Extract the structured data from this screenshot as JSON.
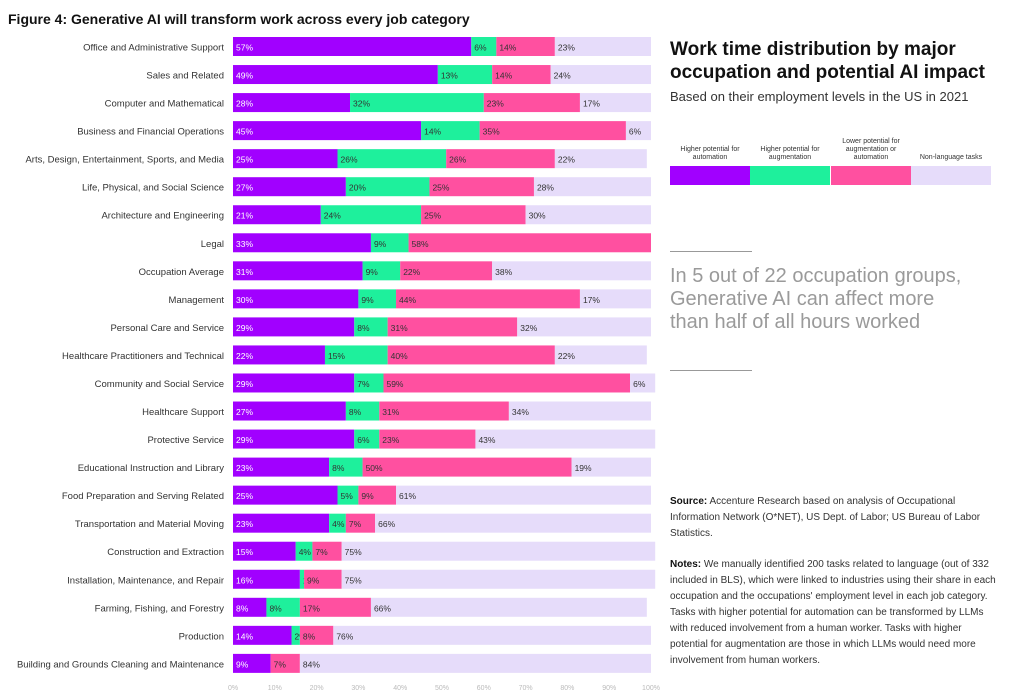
{
  "figure_title": "Figure 4: Generative AI will transform work across every job category",
  "side": {
    "title": "Work time distribution by major occupation and potential AI impact",
    "subtitle": "Based on their employment levels in the US in 2021",
    "callout": "In 5 out of 22 occupation groups, Generative AI can affect more than half of all hours worked",
    "source_label": "Source:",
    "source_text": "Accenture Research based on analysis of Occupational Information Network (O*NET), US Dept. of Labor; US Bureau of Labor Statistics.",
    "notes_label": "Notes:",
    "notes_text": "We manually identified 200 tasks related to language (out of 332 included in BLS), which were linked to industries using their share in each occupation and the occupations' employment level in each job category. Tasks with higher potential for automation can be transformed by LLMs with reduced involvement from a human worker. Tasks with higher potential for augmentation are those in which LLMs would need more involvement from human workers."
  },
  "legend": [
    {
      "label": "Higher potential for automation",
      "color": "#a100ff"
    },
    {
      "label": "Higher potential for augmentation",
      "color": "#1ef09c"
    },
    {
      "label": "Lower potential for augmentation or automation",
      "color": "#ff50a0"
    },
    {
      "label": "Non-language tasks",
      "color": "#e6dcfa"
    }
  ],
  "chart_data": {
    "type": "bar",
    "orientation": "horizontal",
    "stacked": true,
    "title": "Figure 4: Generative AI will transform work across every job category",
    "xlim": [
      0,
      100
    ],
    "xticks": [
      "0%",
      "10%",
      "20%",
      "30%",
      "40%",
      "50%",
      "60%",
      "70%",
      "80%",
      "90%",
      "100%"
    ],
    "categories": [
      "Office and Administrative Support",
      "Sales and Related",
      "Computer and Mathematical",
      "Business and Financial Operations",
      "Arts, Design, Entertainment, Sports, and Media",
      "Life, Physical, and Social Science",
      "Architecture and Engineering",
      "Legal",
      "Occupation Average",
      "Management",
      "Personal Care and Service",
      "Healthcare Practitioners and Technical",
      "Community and Social Service",
      "Healthcare Support",
      "Protective Service",
      "Educational Instruction and Library",
      "Food Preparation and Serving Related",
      "Transportation and Material Moving",
      "Construction and Extraction",
      "Installation, Maintenance, and Repair",
      "Farming, Fishing, and Forestry",
      "Production",
      "Building and Grounds Cleaning and Maintenance"
    ],
    "series": [
      {
        "name": "Higher potential for automation",
        "color": "#a100ff",
        "values": [
          57,
          49,
          28,
          45,
          25,
          27,
          21,
          33,
          31,
          30,
          29,
          22,
          29,
          27,
          29,
          23,
          25,
          23,
          15,
          16,
          8,
          14,
          9
        ]
      },
      {
        "name": "Higher potential for augmentation",
        "color": "#1ef09c",
        "values": [
          6,
          13,
          32,
          14,
          26,
          20,
          24,
          9,
          9,
          9,
          8,
          15,
          7,
          8,
          6,
          8,
          5,
          4,
          4,
          1,
          8,
          2,
          0
        ]
      },
      {
        "name": "Lower potential for augmentation or automation",
        "color": "#ff50a0",
        "values": [
          14,
          14,
          23,
          35,
          26,
          25,
          25,
          58,
          22,
          44,
          31,
          40,
          59,
          31,
          23,
          50,
          9,
          7,
          7,
          9,
          17,
          8,
          7
        ]
      },
      {
        "name": "Non-language tasks",
        "color": "#e6dcfa",
        "values": [
          23,
          24,
          17,
          6,
          22,
          28,
          30,
          0,
          38,
          17,
          32,
          22,
          6,
          34,
          43,
          19,
          61,
          66,
          75,
          75,
          66,
          76,
          84
        ]
      }
    ],
    "legend_position": "right"
  }
}
